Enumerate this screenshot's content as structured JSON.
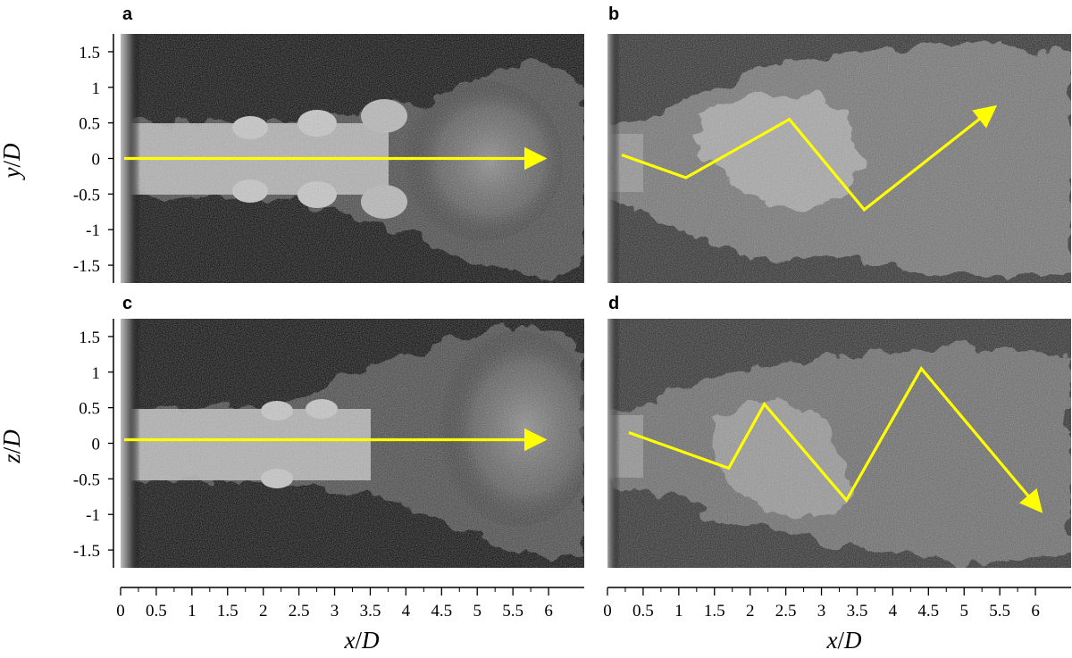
{
  "panel_labels": {
    "a": "a",
    "b": "b",
    "c": "c",
    "d": "d"
  },
  "axis_titles": {
    "top_y": {
      "var": "y",
      "unit": "D"
    },
    "bottom_y": {
      "var": "z",
      "unit": "D"
    },
    "x_left": {
      "var": "x",
      "unit": "D"
    },
    "x_right": {
      "var": "x",
      "unit": "D"
    }
  },
  "colors": {
    "arrow": "#ffff00",
    "background": "#000000"
  },
  "chart_data": [
    {
      "type": "other",
      "panel": "a",
      "description_free": true,
      "xlim": [
        0,
        6.5
      ],
      "ylim": [
        -1.75,
        1.75
      ],
      "ytick_labels": [
        "1.5",
        "1",
        "0.5",
        "0",
        "-0.5",
        "-1",
        "-1.5"
      ],
      "ytick_values": [
        1.5,
        1,
        0.5,
        0,
        -0.5,
        -1,
        -1.5
      ],
      "arrow_path": [
        [
          0.05,
          0.0
        ],
        [
          5.9,
          0.0
        ]
      ]
    },
    {
      "type": "other",
      "panel": "b",
      "xlim": [
        0,
        6.5
      ],
      "ylim": [
        -1.75,
        1.75
      ],
      "arrow_path": [
        [
          0.2,
          0.05
        ],
        [
          1.1,
          -0.27
        ],
        [
          2.55,
          0.55
        ],
        [
          3.6,
          -0.72
        ],
        [
          5.4,
          0.7
        ]
      ]
    },
    {
      "type": "other",
      "panel": "c",
      "xlim": [
        0,
        6.5
      ],
      "ylim": [
        -1.75,
        1.75
      ],
      "ytick_labels": [
        "1.5",
        "1",
        "0.5",
        "0",
        "-0.5",
        "-1",
        "-1.5"
      ],
      "ytick_values": [
        1.5,
        1,
        0.5,
        0,
        -0.5,
        -1,
        -1.5
      ],
      "arrow_path": [
        [
          0.05,
          0.05
        ],
        [
          5.9,
          0.05
        ]
      ]
    },
    {
      "type": "other",
      "panel": "d",
      "xlim": [
        0,
        6.5
      ],
      "ylim": [
        -1.75,
        1.75
      ],
      "arrow_path": [
        [
          0.3,
          0.15
        ],
        [
          1.7,
          -0.35
        ],
        [
          2.2,
          0.55
        ],
        [
          3.35,
          -0.8
        ],
        [
          4.4,
          1.05
        ],
        [
          6.05,
          -0.92
        ]
      ]
    }
  ],
  "x_axis": {
    "tick_labels": [
      "0",
      "0.5",
      "1",
      "1.5",
      "2",
      "2.5",
      "3",
      "3.5",
      "4",
      "4.5",
      "5",
      "5.5",
      "6"
    ],
    "tick_values": [
      0,
      0.5,
      1,
      1.5,
      2,
      2.5,
      3,
      3.5,
      4,
      4.5,
      5,
      5.5,
      6
    ]
  }
}
